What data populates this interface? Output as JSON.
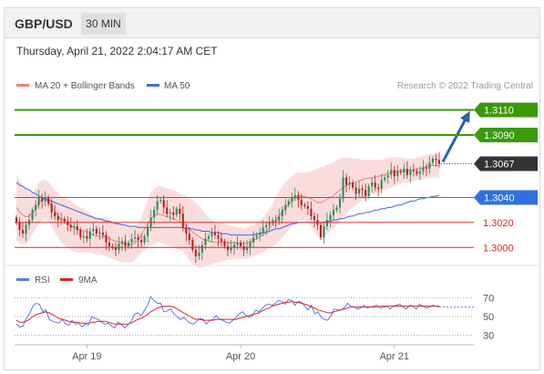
{
  "header": {
    "symbol": "GBP/USD",
    "timeframe": "30 MIN",
    "datetime": "Thursday, April 21, 2022 2:04:17 AM CET"
  },
  "colors": {
    "candle_up": "#2e8b57",
    "candle_down": "#b22222",
    "bollinger": "#f08080",
    "ma50": "#4169e1",
    "resistance": "#3a9a0a",
    "support": "#d42a2a",
    "pivot": "#2f6fe0",
    "last": "#333333",
    "arrow": "#2f5fa8",
    "rsi": "#5b7be0",
    "ma9": "#d42a2a"
  },
  "chart_data": [
    {
      "type": "candlestick",
      "legend": [
        {
          "label": "MA 20 + Bollinger Bands",
          "color": "#f08080"
        },
        {
          "label": "MA 50",
          "color": "#4169e1"
        }
      ],
      "copyright": "Research © 2022 Trading Central",
      "ylim": [
        1.299,
        1.3125
      ],
      "x_ticks": [
        {
          "label": "Apr 19",
          "index": 22
        },
        {
          "label": "Apr 20",
          "index": 70
        },
        {
          "label": "Apr 21",
          "index": 118
        }
      ],
      "levels": [
        {
          "label": "1.3110",
          "value": 1.311,
          "kind": "resistance"
        },
        {
          "label": "1.3090",
          "value": 1.309,
          "kind": "resistance"
        },
        {
          "label": "1.3067",
          "value": 1.3067,
          "kind": "last"
        },
        {
          "label": "1.3040",
          "value": 1.304,
          "kind": "pivot"
        },
        {
          "label": "1.3020",
          "value": 1.302,
          "kind": "support"
        },
        {
          "label": "1.3000",
          "value": 1.3,
          "kind": "support"
        }
      ],
      "close": [
        1.302,
        1.3014,
        1.3011,
        1.3018,
        1.3022,
        1.303,
        1.3034,
        1.304,
        1.3037,
        1.304,
        1.3035,
        1.3028,
        1.3025,
        1.3022,
        1.3023,
        1.3021,
        1.3018,
        1.3016,
        1.3017,
        1.3014,
        1.3008,
        1.3009,
        1.3007,
        1.3013,
        1.3015,
        1.3011,
        1.3012,
        1.301,
        1.3004,
        1.3001,
        1.3,
        1.2998,
        1.3003,
        1.3005,
        1.3001,
        1.3004,
        1.3007,
        1.3008,
        1.3006,
        1.3004,
        1.3009,
        1.3016,
        1.3024,
        1.303,
        1.3037,
        1.3038,
        1.3032,
        1.3027,
        1.3028,
        1.3026,
        1.3031,
        1.3027,
        1.3016,
        1.3011,
        1.3006,
        1.2998,
        1.2993,
        1.2996,
        1.3002,
        1.3007,
        1.3009,
        1.3012,
        1.301,
        1.3007,
        1.3005,
        1.3001,
        1.2998,
        1.3,
        1.3002,
        1.3004,
        1.3001,
        1.2998,
        1.3,
        1.3004,
        1.3008,
        1.301,
        1.3012,
        1.3016,
        1.3018,
        1.302,
        1.3022,
        1.3021,
        1.3025,
        1.303,
        1.3034,
        1.3037,
        1.304,
        1.3042,
        1.3038,
        1.3034,
        1.3033,
        1.3031,
        1.3025,
        1.3022,
        1.3018,
        1.3008,
        1.3017,
        1.3022,
        1.3026,
        1.303,
        1.3032,
        1.3039,
        1.3056,
        1.305,
        1.3052,
        1.3048,
        1.3043,
        1.3047,
        1.3046,
        1.3041,
        1.3049,
        1.3052,
        1.3048,
        1.3047,
        1.3054,
        1.3056,
        1.3058,
        1.3062,
        1.3057,
        1.3061,
        1.306,
        1.3063,
        1.3058,
        1.3062,
        1.3061,
        1.3059,
        1.3061,
        1.3064,
        1.3063,
        1.3068,
        1.3071,
        1.307,
        1.3067
      ],
      "upper_band": [
        1.3058,
        1.3054,
        1.305,
        1.3046,
        1.3044,
        1.3044,
        1.3047,
        1.3052,
        1.3054,
        1.3054,
        1.3052,
        1.3049,
        1.3046,
        1.3043,
        1.3041,
        1.304,
        1.3039,
        1.3037,
        1.3035,
        1.3033,
        1.3032,
        1.3031,
        1.3029,
        1.3027,
        1.3025,
        1.3024,
        1.3023,
        1.3024,
        1.3024,
        1.3022,
        1.3021,
        1.302,
        1.302,
        1.3019,
        1.3018,
        1.3017,
        1.3017,
        1.3017,
        1.3019,
        1.3024,
        1.3031,
        1.3038,
        1.3044,
        1.3047,
        1.3049,
        1.3049,
        1.3048,
        1.3047,
        1.3047,
        1.3046,
        1.3045,
        1.3043,
        1.3042,
        1.3041,
        1.304,
        1.3038,
        1.3036,
        1.3033,
        1.303,
        1.3027,
        1.3024,
        1.3022,
        1.302,
        1.302,
        1.302,
        1.3019,
        1.3018,
        1.3017,
        1.3017,
        1.3016,
        1.3016,
        1.3015,
        1.3016,
        1.3017,
        1.3018,
        1.302,
        1.3022,
        1.3024,
        1.3027,
        1.3031,
        1.3035,
        1.304,
        1.3045,
        1.3049,
        1.3052,
        1.3055,
        1.3057,
        1.3059,
        1.306,
        1.306,
        1.306,
        1.306,
        1.3061,
        1.3062,
        1.3063,
        1.3064,
        1.3065,
        1.3066,
        1.3067,
        1.3068,
        1.307,
        1.3071,
        1.3072,
        1.3072,
        1.3072,
        1.3071,
        1.3071,
        1.3071,
        1.307,
        1.307,
        1.307,
        1.307,
        1.307,
        1.307,
        1.307,
        1.3071,
        1.3071,
        1.3072,
        1.3072,
        1.3072,
        1.3072,
        1.3071,
        1.3071,
        1.3071,
        1.3071,
        1.3072,
        1.3072,
        1.3073,
        1.3074,
        1.3075,
        1.3075,
        1.3075,
        1.3075
      ],
      "lower_band": [
        1.3006,
        1.3003,
        1.3002,
        1.3003,
        1.3006,
        1.3011,
        1.3015,
        1.3019,
        1.3022,
        1.3023,
        1.3021,
        1.3017,
        1.3012,
        1.3008,
        1.3004,
        1.3002,
        1.3,
        1.2998,
        1.2997,
        1.2996,
        1.2996,
        1.2996,
        1.2996,
        1.2996,
        1.2995,
        1.2995,
        1.2994,
        1.2994,
        1.2993,
        1.2992,
        1.2991,
        1.299,
        1.2989,
        1.2988,
        1.2988,
        1.2988,
        1.2988,
        1.299,
        1.2993,
        1.2996,
        1.2998,
        1.3,
        1.3002,
        1.3003,
        1.3004,
        1.3004,
        1.3003,
        1.3002,
        1.3001,
        1.3,
        1.2999,
        1.2998,
        1.2997,
        1.2994,
        1.299,
        1.2987,
        1.2985,
        1.2984,
        1.2984,
        1.2985,
        1.2986,
        1.2987,
        1.2988,
        1.2988,
        1.2989,
        1.2989,
        1.299,
        1.299,
        1.2991,
        1.2991,
        1.2991,
        1.2991,
        1.2991,
        1.2992,
        1.2993,
        1.2994,
        1.2995,
        1.2996,
        1.2998,
        1.3,
        1.3001,
        1.3003,
        1.3005,
        1.3008,
        1.3011,
        1.3014,
        1.3017,
        1.302,
        1.3021,
        1.3022,
        1.3022,
        1.302,
        1.3017,
        1.3013,
        1.3009,
        1.3008,
        1.3009,
        1.3011,
        1.3013,
        1.3015,
        1.3018,
        1.3021,
        1.3024,
        1.3027,
        1.303,
        1.3032,
        1.3034,
        1.3036,
        1.3038,
        1.304,
        1.3041,
        1.3042,
        1.3043,
        1.3044,
        1.3045,
        1.3046,
        1.3047,
        1.3048,
        1.3049,
        1.305,
        1.3051,
        1.3052,
        1.3052,
        1.3053,
        1.3053,
        1.3054,
        1.3054,
        1.3055,
        1.3055,
        1.3056,
        1.3056,
        1.3056,
        1.3056
      ],
      "ma50": [
        1.3052,
        1.305,
        1.3049,
        1.3047,
        1.3046,
        1.3044,
        1.3043,
        1.3041,
        1.304,
        1.3039,
        1.3038,
        1.3037,
        1.3036,
        1.3035,
        1.3034,
        1.3033,
        1.3032,
        1.3031,
        1.303,
        1.3029,
        1.3028,
        1.3027,
        1.3026,
        1.3025,
        1.3024,
        1.3023,
        1.3023,
        1.3022,
        1.3021,
        1.3021,
        1.302,
        1.3019,
        1.3019,
        1.3018,
        1.3018,
        1.3017,
        1.3017,
        1.3017,
        1.3016,
        1.3016,
        1.3016,
        1.3016,
        1.3016,
        1.3016,
        1.3016,
        1.3016,
        1.3016,
        1.3016,
        1.3016,
        1.3016,
        1.3016,
        1.3016,
        1.3016,
        1.3015,
        1.3015,
        1.3015,
        1.3014,
        1.3014,
        1.3013,
        1.3013,
        1.3013,
        1.3012,
        1.3012,
        1.3012,
        1.3011,
        1.3011,
        1.3011,
        1.301,
        1.301,
        1.301,
        1.301,
        1.301,
        1.301,
        1.301,
        1.301,
        1.3011,
        1.3011,
        1.3012,
        1.3012,
        1.3013,
        1.3014,
        1.3015,
        1.3015,
        1.3016,
        1.3017,
        1.3018,
        1.3019,
        1.3019,
        1.302,
        1.302,
        1.302,
        1.302,
        1.302,
        1.302,
        1.302,
        1.302,
        1.302,
        1.3021,
        1.3021,
        1.3022,
        1.3022,
        1.3023,
        1.3023,
        1.3024,
        1.3025,
        1.3025,
        1.3026,
        1.3027,
        1.3027,
        1.3028,
        1.3028,
        1.3029,
        1.303,
        1.303,
        1.3031,
        1.3031,
        1.3032,
        1.3032,
        1.3033,
        1.3034,
        1.3034,
        1.3035,
        1.3036,
        1.3037,
        1.3037,
        1.3038,
        1.3039,
        1.3039,
        1.304,
        1.304,
        1.3041,
        1.3041,
        1.3042
      ],
      "projection": {
        "from": 1.3067,
        "to": 1.311
      }
    },
    {
      "type": "line",
      "legend": [
        {
          "label": "RSI",
          "color": "#5b7be0"
        },
        {
          "label": "9MA",
          "color": "#d42a2a"
        }
      ],
      "ylim": [
        22,
        78
      ],
      "y_ticks": [
        "70",
        "50",
        "30"
      ],
      "series": [
        {
          "name": "RSI",
          "values": [
            42,
            39,
            40,
            48,
            53,
            61,
            64,
            63,
            55,
            57,
            47,
            45,
            44,
            43,
            47,
            42,
            41,
            46,
            42,
            43,
            39,
            42,
            41,
            50,
            48,
            47,
            44,
            42,
            43,
            40,
            38,
            44,
            42,
            38,
            41,
            45,
            52,
            54,
            51,
            56,
            62,
            71,
            67,
            64,
            64,
            55,
            56,
            58,
            53,
            50,
            47,
            49,
            46,
            43,
            42,
            45,
            48,
            47,
            42,
            46,
            47,
            51,
            47,
            46,
            44,
            43,
            46,
            49,
            53,
            55,
            51,
            49,
            51,
            57,
            55,
            59,
            62,
            63,
            62,
            64,
            67,
            66,
            63,
            68,
            67,
            62,
            66,
            65,
            61,
            57,
            62,
            53,
            55,
            49,
            47,
            46,
            51,
            58,
            57,
            57,
            59,
            64,
            61,
            60,
            58,
            59,
            62,
            59,
            60,
            61,
            62,
            59,
            60,
            61,
            58,
            61,
            62,
            63,
            60,
            58,
            62,
            61,
            58,
            63,
            61,
            59,
            60,
            62,
            61,
            60
          ]
        },
        {
          "name": "9MA",
          "values": [
            46,
            44,
            44,
            45,
            47,
            50,
            52,
            53,
            54,
            55,
            54,
            52,
            50,
            48,
            47,
            46,
            45,
            44,
            44,
            44,
            43,
            43,
            43,
            44,
            44,
            45,
            45,
            45,
            44,
            43,
            42,
            42,
            42,
            42,
            42,
            43,
            45,
            47,
            48,
            50,
            52,
            55,
            57,
            59,
            60,
            61,
            61,
            61,
            60,
            58,
            56,
            54,
            52,
            50,
            48,
            47,
            47,
            46,
            46,
            46,
            46,
            47,
            47,
            47,
            47,
            47,
            47,
            47,
            48,
            49,
            50,
            51,
            52,
            53,
            54,
            56,
            58,
            59,
            61,
            62,
            63,
            64,
            65,
            65,
            66,
            65,
            65,
            64,
            63,
            62,
            60,
            59,
            57,
            56,
            55,
            54,
            54,
            55,
            56,
            57,
            58,
            59,
            60,
            60,
            60,
            60,
            60,
            60,
            60,
            60,
            60,
            61,
            61,
            61,
            61,
            61,
            61,
            61,
            61,
            61,
            61,
            61,
            61,
            61,
            61,
            61,
            61,
            61,
            61,
            61
          ]
        }
      ]
    }
  ]
}
